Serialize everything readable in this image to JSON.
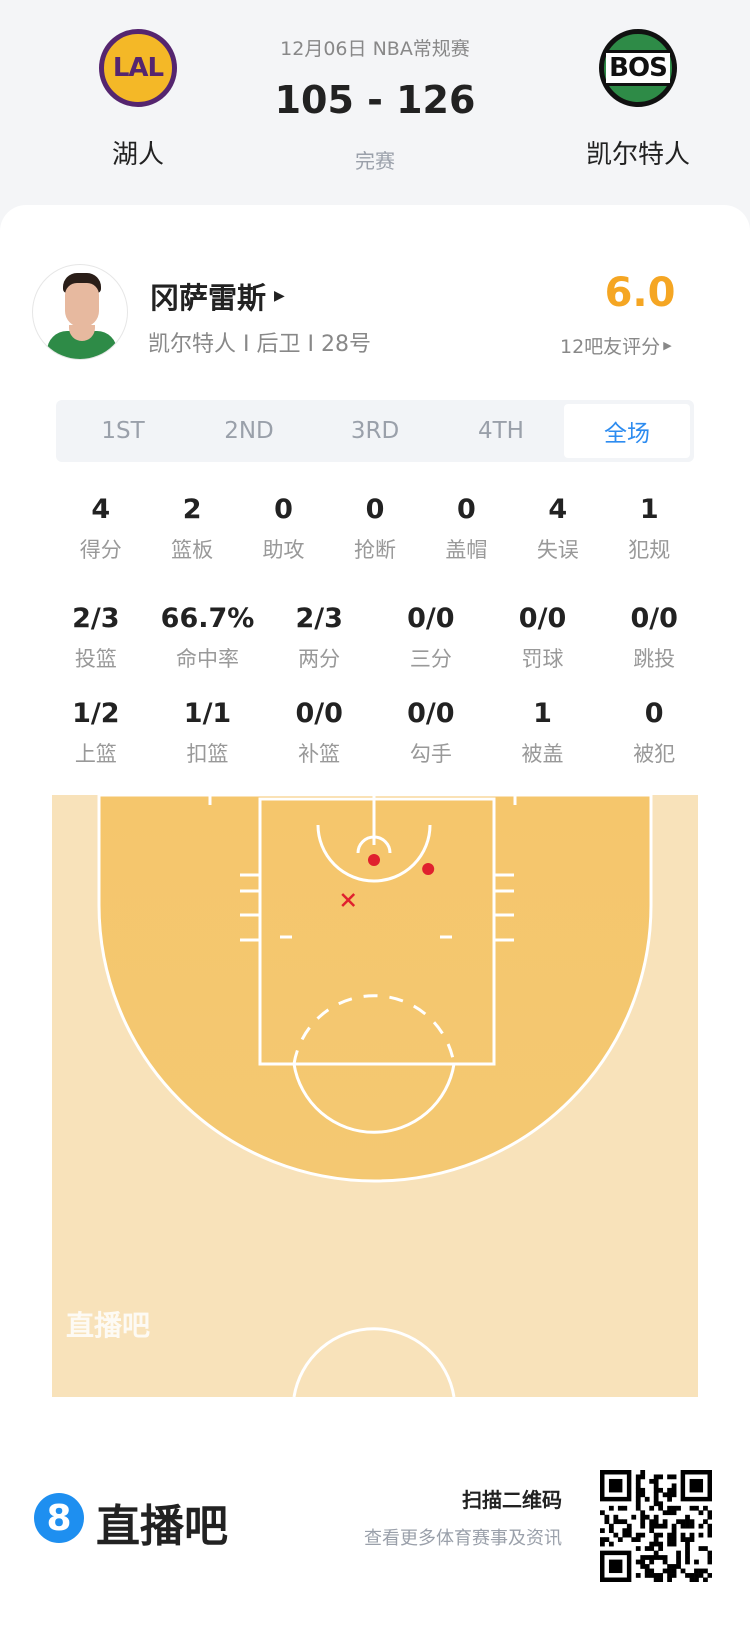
{
  "game": {
    "date_league": "12月06日 NBA常规赛",
    "score": "105 - 126",
    "status": "完赛",
    "home": {
      "abbr": "LAL",
      "name": "湖人",
      "color": "#55256f"
    },
    "away": {
      "abbr": "BOS",
      "name": "凯尔特人",
      "color": "#2e8b47"
    }
  },
  "player": {
    "name": "冈萨雷斯",
    "info": "凯尔特人 I 后卫 I 28号",
    "rating": "6.0",
    "rating_label": "12吧友评分",
    "rating_color": "#f5a623"
  },
  "tabs": [
    {
      "label": "1ST"
    },
    {
      "label": "2ND"
    },
    {
      "label": "3RD"
    },
    {
      "label": "4TH"
    },
    {
      "label": "全场",
      "active": true
    }
  ],
  "stats": {
    "row1": [
      {
        "v": "4",
        "l": "得分"
      },
      {
        "v": "2",
        "l": "篮板"
      },
      {
        "v": "0",
        "l": "助攻"
      },
      {
        "v": "0",
        "l": "抢断"
      },
      {
        "v": "0",
        "l": "盖帽"
      },
      {
        "v": "4",
        "l": "失误"
      },
      {
        "v": "1",
        "l": "犯规"
      }
    ],
    "row2": [
      {
        "v": "2/3",
        "l": "投篮"
      },
      {
        "v": "66.7%",
        "l": "命中率"
      },
      {
        "v": "2/3",
        "l": "两分"
      },
      {
        "v": "0/0",
        "l": "三分"
      },
      {
        "v": "0/0",
        "l": "罚球"
      },
      {
        "v": "0/0",
        "l": "跳投"
      }
    ],
    "row3": [
      {
        "v": "1/2",
        "l": "上篮"
      },
      {
        "v": "1/1",
        "l": "扣篮"
      },
      {
        "v": "0/0",
        "l": "补篮"
      },
      {
        "v": "0/0",
        "l": "勾手"
      },
      {
        "v": "1",
        "l": "被盖"
      },
      {
        "v": "0",
        "l": "被犯"
      }
    ]
  },
  "shot_chart": {
    "watermark": "直播吧",
    "made_color": "#e0202e",
    "shots": [
      {
        "x_ft": 0,
        "y_ft": 0,
        "made": true
      },
      {
        "x_ft": 4.2,
        "y_ft": 0.7,
        "made": true
      },
      {
        "x_ft": -2.0,
        "y_ft": 3.1,
        "made": false
      }
    ]
  },
  "footer": {
    "brand_mark": "8",
    "brand": "直播吧",
    "scan": "扫描二维码",
    "scan_sub": "查看更多体育赛事及资讯",
    "brand_color": "#1e8ff0"
  }
}
